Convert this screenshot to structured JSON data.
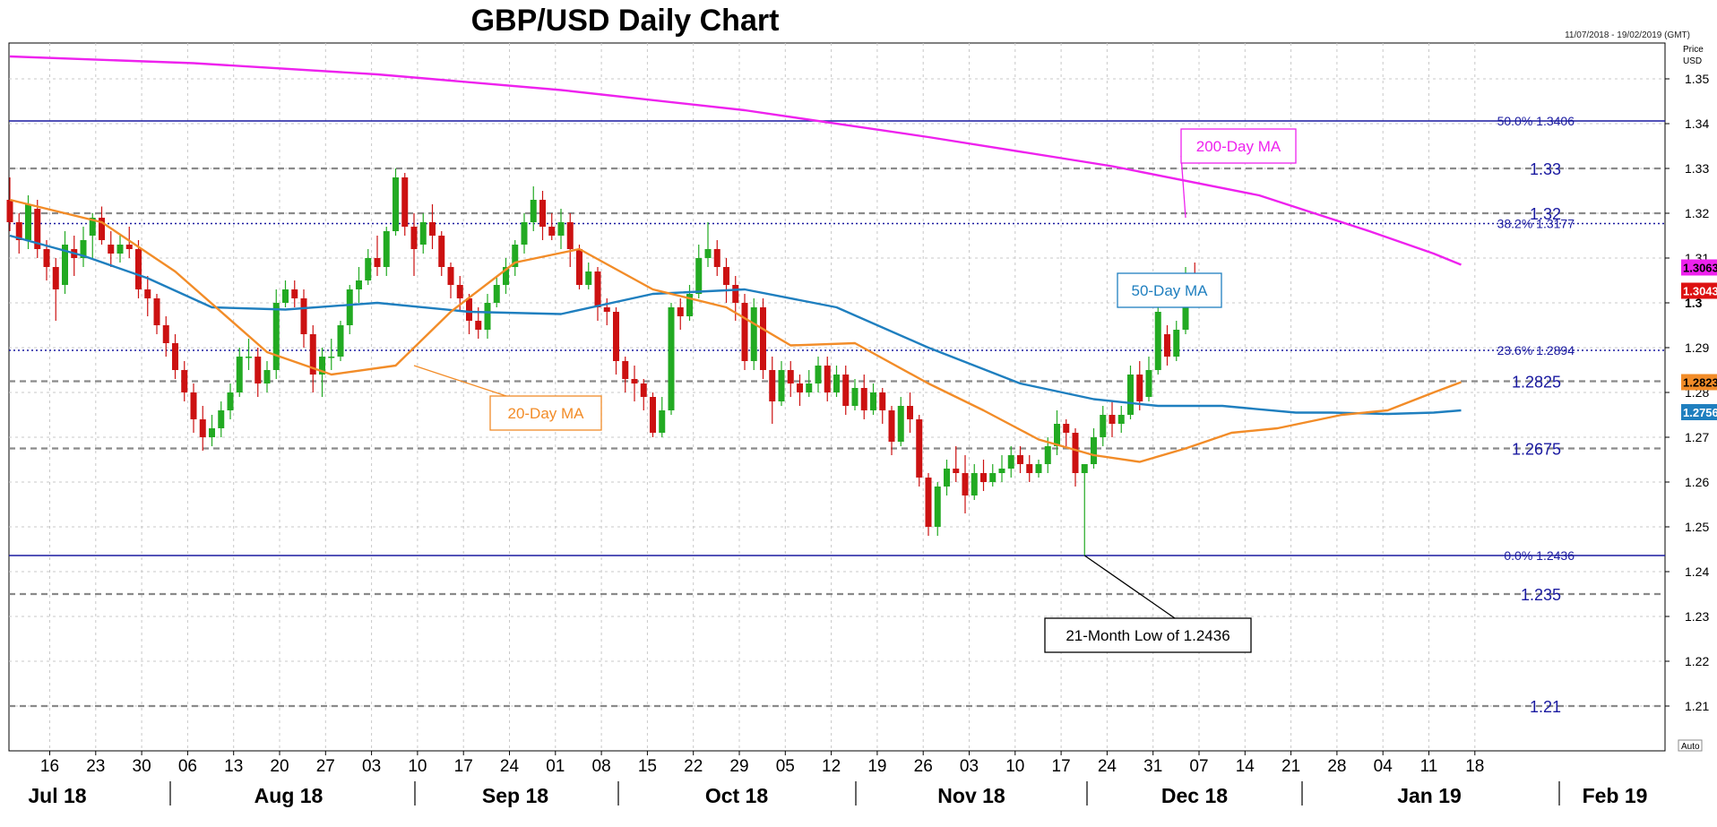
{
  "chart_data": {
    "type": "candlestick",
    "title": "GBP/USD Daily Chart",
    "date_range": "11/07/2018 - 19/02/2019 (GMT)",
    "y_axis_title": [
      "Price",
      "USD"
    ],
    "auto_label": "Auto",
    "ylim": [
      1.2,
      1.358
    ],
    "y_ticks": [
      "1.35",
      "1.34",
      "1.33",
      "1.32",
      "1.31",
      "1.3",
      "1.29",
      "1.28",
      "1.27",
      "1.26",
      "1.25",
      "1.24",
      "1.23",
      "1.22",
      "1.21"
    ],
    "x_day_labels": [
      "16",
      "23",
      "30",
      "06",
      "13",
      "20",
      "27",
      "03",
      "10",
      "17",
      "24",
      "01",
      "08",
      "15",
      "22",
      "29",
      "05",
      "12",
      "19",
      "26",
      "03",
      "10",
      "17",
      "24",
      "31",
      "07",
      "14",
      "21",
      "28",
      "04",
      "11",
      "18"
    ],
    "x_month_labels": [
      "Jul 18",
      "Aug 18",
      "Sep 18",
      "Oct 18",
      "Nov 18",
      "Dec 18",
      "Jan 19",
      "Feb 19"
    ],
    "levels": [
      {
        "value": 1.3406,
        "style": "solid",
        "label": "50.0%  1.3406",
        "color": "#1a1aa0"
      },
      {
        "value": 1.33,
        "style": "dashed",
        "label": "1.33",
        "color": "#1a1aa0"
      },
      {
        "value": 1.32,
        "style": "dashed",
        "label": "1.32",
        "color": "#1a1aa0"
      },
      {
        "value": 1.3177,
        "style": "dotted",
        "label": "38.2%  1.3177",
        "color": "#1a1aa0"
      },
      {
        "value": 1.2894,
        "style": "dotted",
        "label": "23.6%  1.2894",
        "color": "#1a1aa0"
      },
      {
        "value": 1.2825,
        "style": "dashed",
        "label": "1.2825",
        "color": "#1a1aa0"
      },
      {
        "value": 1.2675,
        "style": "dashed",
        "label": "1.2675",
        "color": "#1a1aa0"
      },
      {
        "value": 1.2436,
        "style": "solid",
        "label": "0.0%  1.2436",
        "color": "#1a1aa0"
      },
      {
        "value": 1.235,
        "style": "dashed",
        "label": "1.235",
        "color": "#1a1aa0"
      },
      {
        "value": 1.21,
        "style": "dashed",
        "label": "1.21",
        "color": "#1a1aa0"
      }
    ],
    "price_tags": [
      {
        "value": 1.3063,
        "label": "1.3063",
        "color": "#ee22ee"
      },
      {
        "value": 1.3043,
        "label": "1.3043",
        "color": "#dd1111"
      },
      {
        "value": 1.2823,
        "label": "1.2823",
        "color": "#f28c28"
      },
      {
        "value": 1.2756,
        "label": "1.2756",
        "color": "#1f7fbf"
      }
    ],
    "annotations": [
      {
        "text": "200-Day MA",
        "color": "#ee22ee",
        "anchor": [
          1.319,
          1.331
        ]
      },
      {
        "text": "50-Day MA",
        "color": "#1f7fbf",
        "anchor": [
          1.2995,
          1.3045
        ]
      },
      {
        "text": "20-Day MA",
        "color": "#f28c28",
        "anchor": [
          1.286,
          1.276
        ]
      },
      {
        "text": "21-Month Low of 1.2436",
        "color": "#000000",
        "anchor": [
          1.2436,
          1.2335
        ]
      }
    ],
    "series": [
      {
        "name": "200-Day MA",
        "color": "#ee22ee",
        "points": [
          [
            0,
            1.355
          ],
          [
            20,
            1.3535
          ],
          [
            40,
            1.351
          ],
          [
            60,
            1.3475
          ],
          [
            80,
            1.343
          ],
          [
            100,
            1.337
          ],
          [
            120,
            1.3305
          ],
          [
            136,
            1.324
          ],
          [
            148,
            1.316
          ],
          [
            155,
            1.311
          ],
          [
            158,
            1.3085
          ]
        ]
      },
      {
        "name": "50-Day MA",
        "color": "#1f7fbf",
        "points": [
          [
            0,
            1.315
          ],
          [
            8,
            1.3105
          ],
          [
            15,
            1.3055
          ],
          [
            22,
            1.299
          ],
          [
            30,
            1.2985
          ],
          [
            40,
            1.3
          ],
          [
            50,
            1.298
          ],
          [
            60,
            1.2975
          ],
          [
            70,
            1.302
          ],
          [
            80,
            1.303
          ],
          [
            90,
            1.299
          ],
          [
            100,
            1.29
          ],
          [
            110,
            1.282
          ],
          [
            118,
            1.2785
          ],
          [
            125,
            1.277
          ],
          [
            132,
            1.277
          ],
          [
            140,
            1.2755
          ],
          [
            144,
            1.2755
          ],
          [
            150,
            1.2752
          ],
          [
            155,
            1.2755
          ],
          [
            158,
            1.276
          ]
        ]
      },
      {
        "name": "20-Day MA",
        "color": "#f28c28",
        "points": [
          [
            0,
            1.323
          ],
          [
            10,
            1.318
          ],
          [
            18,
            1.307
          ],
          [
            28,
            1.289
          ],
          [
            35,
            1.284
          ],
          [
            42,
            1.286
          ],
          [
            48,
            1.298
          ],
          [
            55,
            1.309
          ],
          [
            62,
            1.312
          ],
          [
            70,
            1.303
          ],
          [
            78,
            1.299
          ],
          [
            85,
            1.2905
          ],
          [
            92,
            1.291
          ],
          [
            100,
            1.282
          ],
          [
            106,
            1.276
          ],
          [
            112,
            1.2695
          ],
          [
            118,
            1.266
          ],
          [
            123,
            1.2645
          ],
          [
            128,
            1.2675
          ],
          [
            133,
            1.271
          ],
          [
            138,
            1.272
          ],
          [
            145,
            1.275
          ],
          [
            150,
            1.276
          ],
          [
            155,
            1.28
          ],
          [
            158,
            1.2823
          ]
        ]
      }
    ],
    "candles": [
      {
        "o": 1.323,
        "h": 1.328,
        "l": 1.316,
        "c": 1.318
      },
      {
        "o": 1.318,
        "h": 1.32,
        "l": 1.311,
        "c": 1.314
      },
      {
        "o": 1.314,
        "h": 1.324,
        "l": 1.312,
        "c": 1.322
      },
      {
        "o": 1.321,
        "h": 1.323,
        "l": 1.31,
        "c": 1.312
      },
      {
        "o": 1.312,
        "h": 1.314,
        "l": 1.305,
        "c": 1.308
      },
      {
        "o": 1.308,
        "h": 1.31,
        "l": 1.296,
        "c": 1.303
      },
      {
        "o": 1.304,
        "h": 1.316,
        "l": 1.302,
        "c": 1.313
      },
      {
        "o": 1.312,
        "h": 1.315,
        "l": 1.306,
        "c": 1.31
      },
      {
        "o": 1.31,
        "h": 1.317,
        "l": 1.308,
        "c": 1.314
      },
      {
        "o": 1.315,
        "h": 1.32,
        "l": 1.31,
        "c": 1.319
      },
      {
        "o": 1.319,
        "h": 1.3215,
        "l": 1.313,
        "c": 1.314
      },
      {
        "o": 1.313,
        "h": 1.316,
        "l": 1.308,
        "c": 1.311
      },
      {
        "o": 1.311,
        "h": 1.315,
        "l": 1.309,
        "c": 1.313
      },
      {
        "o": 1.313,
        "h": 1.317,
        "l": 1.31,
        "c": 1.312
      },
      {
        "o": 1.312,
        "h": 1.314,
        "l": 1.301,
        "c": 1.303
      },
      {
        "o": 1.303,
        "h": 1.306,
        "l": 1.297,
        "c": 1.301
      },
      {
        "o": 1.301,
        "h": 1.302,
        "l": 1.293,
        "c": 1.295
      },
      {
        "o": 1.295,
        "h": 1.297,
        "l": 1.288,
        "c": 1.291
      },
      {
        "o": 1.291,
        "h": 1.293,
        "l": 1.283,
        "c": 1.285
      },
      {
        "o": 1.285,
        "h": 1.287,
        "l": 1.278,
        "c": 1.28
      },
      {
        "o": 1.28,
        "h": 1.282,
        "l": 1.271,
        "c": 1.274
      },
      {
        "o": 1.274,
        "h": 1.277,
        "l": 1.267,
        "c": 1.27
      },
      {
        "o": 1.27,
        "h": 1.275,
        "l": 1.268,
        "c": 1.272
      },
      {
        "o": 1.272,
        "h": 1.278,
        "l": 1.27,
        "c": 1.276
      },
      {
        "o": 1.276,
        "h": 1.282,
        "l": 1.274,
        "c": 1.28
      },
      {
        "o": 1.28,
        "h": 1.29,
        "l": 1.279,
        "c": 1.288
      },
      {
        "o": 1.288,
        "h": 1.292,
        "l": 1.285,
        "c": 1.288
      },
      {
        "o": 1.288,
        "h": 1.29,
        "l": 1.279,
        "c": 1.282
      },
      {
        "o": 1.282,
        "h": 1.287,
        "l": 1.28,
        "c": 1.285
      },
      {
        "o": 1.285,
        "h": 1.303,
        "l": 1.283,
        "c": 1.3
      },
      {
        "o": 1.3,
        "h": 1.305,
        "l": 1.299,
        "c": 1.303
      },
      {
        "o": 1.303,
        "h": 1.305,
        "l": 1.299,
        "c": 1.301
      },
      {
        "o": 1.301,
        "h": 1.303,
        "l": 1.29,
        "c": 1.293
      },
      {
        "o": 1.293,
        "h": 1.295,
        "l": 1.28,
        "c": 1.284
      },
      {
        "o": 1.284,
        "h": 1.29,
        "l": 1.279,
        "c": 1.288
      },
      {
        "o": 1.288,
        "h": 1.292,
        "l": 1.285,
        "c": 1.288
      },
      {
        "o": 1.288,
        "h": 1.296,
        "l": 1.287,
        "c": 1.295
      },
      {
        "o": 1.295,
        "h": 1.304,
        "l": 1.293,
        "c": 1.303
      },
      {
        "o": 1.303,
        "h": 1.308,
        "l": 1.3,
        "c": 1.305
      },
      {
        "o": 1.305,
        "h": 1.312,
        "l": 1.304,
        "c": 1.31
      },
      {
        "o": 1.31,
        "h": 1.315,
        "l": 1.306,
        "c": 1.308
      },
      {
        "o": 1.308,
        "h": 1.317,
        "l": 1.306,
        "c": 1.316
      },
      {
        "o": 1.316,
        "h": 1.33,
        "l": 1.315,
        "c": 1.328
      },
      {
        "o": 1.328,
        "h": 1.329,
        "l": 1.315,
        "c": 1.317
      },
      {
        "o": 1.317,
        "h": 1.32,
        "l": 1.306,
        "c": 1.312
      },
      {
        "o": 1.313,
        "h": 1.32,
        "l": 1.311,
        "c": 1.318
      },
      {
        "o": 1.318,
        "h": 1.322,
        "l": 1.312,
        "c": 1.315
      },
      {
        "o": 1.315,
        "h": 1.316,
        "l": 1.306,
        "c": 1.308
      },
      {
        "o": 1.308,
        "h": 1.309,
        "l": 1.301,
        "c": 1.304
      },
      {
        "o": 1.304,
        "h": 1.306,
        "l": 1.298,
        "c": 1.301
      },
      {
        "o": 1.301,
        "h": 1.302,
        "l": 1.293,
        "c": 1.296
      },
      {
        "o": 1.296,
        "h": 1.299,
        "l": 1.292,
        "c": 1.294
      },
      {
        "o": 1.294,
        "h": 1.302,
        "l": 1.292,
        "c": 1.3
      },
      {
        "o": 1.3,
        "h": 1.306,
        "l": 1.299,
        "c": 1.304
      },
      {
        "o": 1.304,
        "h": 1.31,
        "l": 1.302,
        "c": 1.308
      },
      {
        "o": 1.308,
        "h": 1.314,
        "l": 1.306,
        "c": 1.313
      },
      {
        "o": 1.313,
        "h": 1.32,
        "l": 1.311,
        "c": 1.318
      },
      {
        "o": 1.318,
        "h": 1.326,
        "l": 1.316,
        "c": 1.323
      },
      {
        "o": 1.323,
        "h": 1.325,
        "l": 1.314,
        "c": 1.317
      },
      {
        "o": 1.317,
        "h": 1.32,
        "l": 1.314,
        "c": 1.315
      },
      {
        "o": 1.315,
        "h": 1.321,
        "l": 1.312,
        "c": 1.318
      },
      {
        "o": 1.318,
        "h": 1.32,
        "l": 1.308,
        "c": 1.312
      },
      {
        "o": 1.312,
        "h": 1.313,
        "l": 1.303,
        "c": 1.304
      },
      {
        "o": 1.304,
        "h": 1.309,
        "l": 1.303,
        "c": 1.307
      },
      {
        "o": 1.307,
        "h": 1.308,
        "l": 1.296,
        "c": 1.299
      },
      {
        "o": 1.299,
        "h": 1.301,
        "l": 1.295,
        "c": 1.298
      },
      {
        "o": 1.298,
        "h": 1.299,
        "l": 1.284,
        "c": 1.287
      },
      {
        "o": 1.287,
        "h": 1.288,
        "l": 1.28,
        "c": 1.283
      },
      {
        "o": 1.283,
        "h": 1.286,
        "l": 1.278,
        "c": 1.282
      },
      {
        "o": 1.282,
        "h": 1.283,
        "l": 1.276,
        "c": 1.279
      },
      {
        "o": 1.279,
        "h": 1.28,
        "l": 1.27,
        "c": 1.271
      },
      {
        "o": 1.271,
        "h": 1.279,
        "l": 1.27,
        "c": 1.276
      },
      {
        "o": 1.276,
        "h": 1.3,
        "l": 1.275,
        "c": 1.299
      },
      {
        "o": 1.299,
        "h": 1.301,
        "l": 1.294,
        "c": 1.297
      },
      {
        "o": 1.297,
        "h": 1.304,
        "l": 1.296,
        "c": 1.302
      },
      {
        "o": 1.302,
        "h": 1.313,
        "l": 1.301,
        "c": 1.31
      },
      {
        "o": 1.31,
        "h": 1.318,
        "l": 1.308,
        "c": 1.312
      },
      {
        "o": 1.312,
        "h": 1.314,
        "l": 1.306,
        "c": 1.308
      },
      {
        "o": 1.308,
        "h": 1.31,
        "l": 1.3,
        "c": 1.304
      },
      {
        "o": 1.304,
        "h": 1.306,
        "l": 1.296,
        "c": 1.3
      },
      {
        "o": 1.3,
        "h": 1.302,
        "l": 1.285,
        "c": 1.287
      },
      {
        "o": 1.287,
        "h": 1.301,
        "l": 1.285,
        "c": 1.299
      },
      {
        "o": 1.299,
        "h": 1.301,
        "l": 1.283,
        "c": 1.285
      },
      {
        "o": 1.285,
        "h": 1.288,
        "l": 1.273,
        "c": 1.278
      },
      {
        "o": 1.278,
        "h": 1.287,
        "l": 1.277,
        "c": 1.285
      },
      {
        "o": 1.285,
        "h": 1.287,
        "l": 1.279,
        "c": 1.282
      },
      {
        "o": 1.282,
        "h": 1.284,
        "l": 1.277,
        "c": 1.28
      },
      {
        "o": 1.28,
        "h": 1.285,
        "l": 1.279,
        "c": 1.282
      },
      {
        "o": 1.282,
        "h": 1.288,
        "l": 1.28,
        "c": 1.286
      },
      {
        "o": 1.286,
        "h": 1.288,
        "l": 1.278,
        "c": 1.28
      },
      {
        "o": 1.28,
        "h": 1.286,
        "l": 1.279,
        "c": 1.284
      },
      {
        "o": 1.284,
        "h": 1.286,
        "l": 1.275,
        "c": 1.277
      },
      {
        "o": 1.277,
        "h": 1.283,
        "l": 1.276,
        "c": 1.281
      },
      {
        "o": 1.281,
        "h": 1.284,
        "l": 1.274,
        "c": 1.276
      },
      {
        "o": 1.276,
        "h": 1.282,
        "l": 1.275,
        "c": 1.28
      },
      {
        "o": 1.28,
        "h": 1.281,
        "l": 1.273,
        "c": 1.276
      },
      {
        "o": 1.276,
        "h": 1.277,
        "l": 1.266,
        "c": 1.269
      },
      {
        "o": 1.269,
        "h": 1.279,
        "l": 1.268,
        "c": 1.277
      },
      {
        "o": 1.277,
        "h": 1.28,
        "l": 1.271,
        "c": 1.274
      },
      {
        "o": 1.274,
        "h": 1.275,
        "l": 1.259,
        "c": 1.261
      },
      {
        "o": 1.261,
        "h": 1.262,
        "l": 1.248,
        "c": 1.25
      },
      {
        "o": 1.25,
        "h": 1.26,
        "l": 1.248,
        "c": 1.259
      },
      {
        "o": 1.259,
        "h": 1.265,
        "l": 1.257,
        "c": 1.263
      },
      {
        "o": 1.263,
        "h": 1.268,
        "l": 1.26,
        "c": 1.262
      },
      {
        "o": 1.262,
        "h": 1.266,
        "l": 1.253,
        "c": 1.257
      },
      {
        "o": 1.257,
        "h": 1.264,
        "l": 1.256,
        "c": 1.262
      },
      {
        "o": 1.262,
        "h": 1.265,
        "l": 1.258,
        "c": 1.26
      },
      {
        "o": 1.26,
        "h": 1.264,
        "l": 1.259,
        "c": 1.262
      },
      {
        "o": 1.262,
        "h": 1.266,
        "l": 1.26,
        "c": 1.263
      },
      {
        "o": 1.263,
        "h": 1.268,
        "l": 1.261,
        "c": 1.266
      },
      {
        "o": 1.266,
        "h": 1.268,
        "l": 1.262,
        "c": 1.264
      },
      {
        "o": 1.264,
        "h": 1.266,
        "l": 1.26,
        "c": 1.262
      },
      {
        "o": 1.262,
        "h": 1.265,
        "l": 1.261,
        "c": 1.264
      },
      {
        "o": 1.264,
        "h": 1.27,
        "l": 1.262,
        "c": 1.268
      },
      {
        "o": 1.268,
        "h": 1.276,
        "l": 1.266,
        "c": 1.273
      },
      {
        "o": 1.273,
        "h": 1.274,
        "l": 1.268,
        "c": 1.271
      },
      {
        "o": 1.271,
        "h": 1.272,
        "l": 1.259,
        "c": 1.262
      },
      {
        "o": 1.262,
        "h": 1.263,
        "l": 1.2436,
        "c": 1.264
      },
      {
        "o": 1.264,
        "h": 1.272,
        "l": 1.263,
        "c": 1.27
      },
      {
        "o": 1.27,
        "h": 1.277,
        "l": 1.268,
        "c": 1.275
      },
      {
        "o": 1.275,
        "h": 1.278,
        "l": 1.27,
        "c": 1.273
      },
      {
        "o": 1.273,
        "h": 1.277,
        "l": 1.271,
        "c": 1.275
      },
      {
        "o": 1.275,
        "h": 1.286,
        "l": 1.274,
        "c": 1.284
      },
      {
        "o": 1.284,
        "h": 1.287,
        "l": 1.276,
        "c": 1.278
      },
      {
        "o": 1.279,
        "h": 1.288,
        "l": 1.278,
        "c": 1.285
      },
      {
        "o": 1.285,
        "h": 1.3,
        "l": 1.284,
        "c": 1.298
      },
      {
        "o": 1.293,
        "h": 1.295,
        "l": 1.286,
        "c": 1.288
      },
      {
        "o": 1.288,
        "h": 1.296,
        "l": 1.287,
        "c": 1.294
      },
      {
        "o": 1.294,
        "h": 1.308,
        "l": 1.293,
        "c": 1.306
      },
      {
        "o": 1.306,
        "h": 1.309,
        "l": 1.303,
        "c": 1.3043
      }
    ]
  }
}
